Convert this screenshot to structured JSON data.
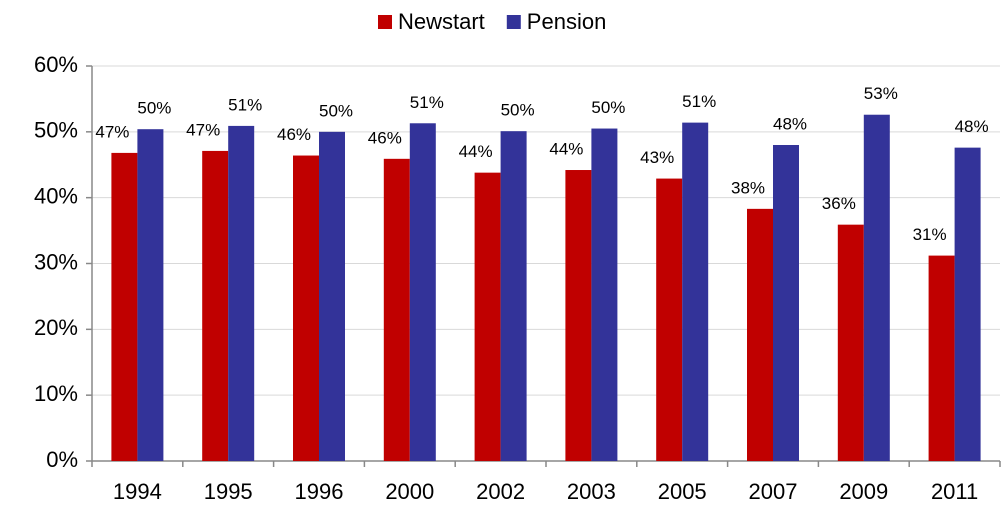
{
  "chart_data": {
    "type": "bar",
    "categories": [
      "1994",
      "1995",
      "1996",
      "2000",
      "2002",
      "2003",
      "2005",
      "2007",
      "2009",
      "2011"
    ],
    "series": [
      {
        "name": "Newstart",
        "color": "#c00000",
        "values": [
          46.8,
          47.1,
          46.4,
          45.9,
          43.8,
          44.2,
          42.9,
          38.3,
          35.9,
          31.2
        ],
        "value_labels": [
          "47%",
          "47%",
          "46%",
          "46%",
          "44%",
          "44%",
          "43%",
          "38%",
          "36%",
          "31%"
        ]
      },
      {
        "name": "Pension",
        "color": "#333399",
        "values": [
          50.4,
          50.9,
          50.0,
          51.3,
          50.1,
          50.5,
          51.4,
          48.0,
          52.6,
          47.6
        ],
        "value_labels": [
          "50%",
          "51%",
          "50%",
          "51%",
          "50%",
          "50%",
          "51%",
          "48%",
          "53%",
          "48%"
        ]
      }
    ],
    "ylim": [
      0,
      60
    ],
    "yticks": [
      {
        "value": 0,
        "label": "0%"
      },
      {
        "value": 10,
        "label": "10%"
      },
      {
        "value": 20,
        "label": "20%"
      },
      {
        "value": 30,
        "label": "30%"
      },
      {
        "value": 40,
        "label": "40%"
      },
      {
        "value": 50,
        "label": "50%"
      },
      {
        "value": 60,
        "label": "60%"
      }
    ],
    "grid": true,
    "legend": "top"
  }
}
